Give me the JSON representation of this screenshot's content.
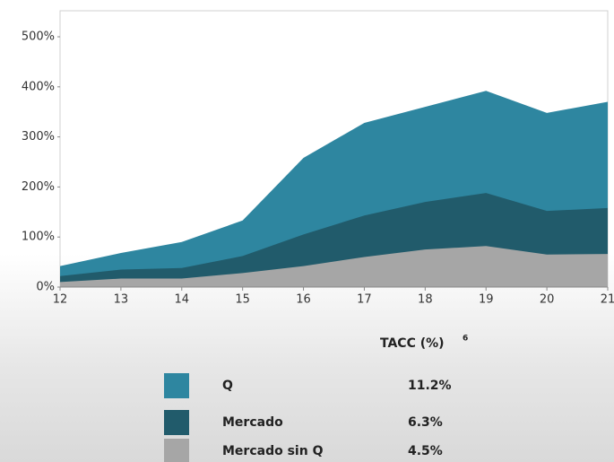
{
  "chart_data": {
    "type": "area",
    "x": [
      12,
      13,
      14,
      15,
      16,
      17,
      18,
      19,
      20,
      21
    ],
    "series": [
      {
        "name": "Q",
        "color": "#2e86a0",
        "values": [
          42,
          68,
          90,
          133,
          258,
          328,
          360,
          392,
          348,
          370
        ],
        "tacc": "11.2%"
      },
      {
        "name": "Mercado",
        "color": "#215b6b",
        "values": [
          22,
          35,
          38,
          62,
          105,
          143,
          170,
          188,
          152,
          158
        ],
        "tacc": "6.3%"
      },
      {
        "name": "Mercado sin Q",
        "color": "#a6a6a6",
        "values": [
          10,
          17,
          17,
          28,
          42,
          60,
          75,
          82,
          65,
          66
        ],
        "tacc": "4.5%"
      }
    ],
    "xlim": [
      12,
      21
    ],
    "xticks": [
      12,
      13,
      14,
      15,
      16,
      17,
      18,
      19,
      20,
      21
    ],
    "ylim": [
      0,
      500
    ],
    "yticks": [
      {
        "value": 0,
        "label": "0%"
      },
      {
        "value": 100,
        "label": "100%"
      },
      {
        "value": 200,
        "label": "200%"
      },
      {
        "value": 300,
        "label": "300%"
      },
      {
        "value": 400,
        "label": "400%"
      },
      {
        "value": 500,
        "label": "500%"
      }
    ],
    "legend_title": "TACC (%)",
    "legend_title_note": "6"
  }
}
